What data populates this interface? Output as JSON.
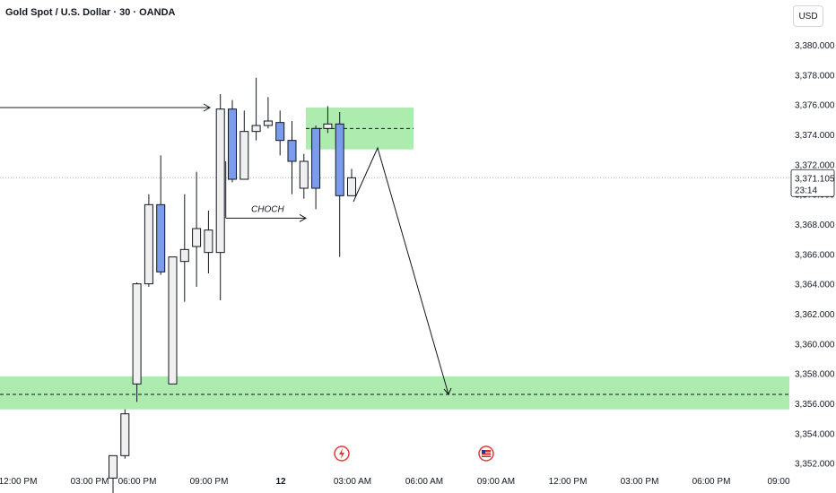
{
  "header": {
    "title": "Gold Spot / U.S. Dollar · 30 · OANDA",
    "currency": "USD"
  },
  "chart_data": {
    "type": "candlestick",
    "y_ticks": [
      "3,380.000",
      "3,378.000",
      "3,376.000",
      "3,374.000",
      "3,372.000",
      "3,370.000",
      "3,368.000",
      "3,366.000",
      "3,364.000",
      "3,362.000",
      "3,360.000",
      "3,358.000",
      "3,356.000",
      "3,354.000",
      "3,352.000"
    ],
    "ylim": [
      3351.2,
      3382.4
    ],
    "x_ticks": [
      "12:00 PM",
      "03:00 PM",
      "06:00 PM",
      "09:00 PM",
      "12",
      "03:00 AM",
      "06:00 AM",
      "09:00 AM",
      "12:00 PM",
      "03:00 PM",
      "06:00 PM",
      "09:00"
    ],
    "current_price": {
      "value": 3371.105,
      "label": "3,371.105",
      "countdown": "23:14"
    },
    "candles": [
      {
        "o": 3351.0,
        "h": 3352.5,
        "l": 3350.0,
        "c": 3352.5
      },
      {
        "o": 3352.5,
        "h": 3355.6,
        "l": 3352.3,
        "c": 3355.3
      },
      {
        "o": 3357.3,
        "h": 3364.1,
        "l": 3356.1,
        "c": 3364.0
      },
      {
        "o": 3364.0,
        "h": 3370.0,
        "l": 3363.8,
        "c": 3369.3
      },
      {
        "o": 3369.3,
        "h": 3372.6,
        "l": 3364.6,
        "c": 3364.8
      },
      {
        "o": 3357.3,
        "h": 3365.8,
        "l": 3357.3,
        "c": 3365.8
      },
      {
        "o": 3365.5,
        "h": 3370.0,
        "l": 3362.8,
        "c": 3366.3
      },
      {
        "o": 3366.5,
        "h": 3371.5,
        "l": 3363.8,
        "c": 3367.7
      },
      {
        "o": 3366.1,
        "h": 3368.9,
        "l": 3364.7,
        "c": 3367.6
      },
      {
        "o": 3366.1,
        "h": 3376.7,
        "l": 3362.9,
        "c": 3375.7
      },
      {
        "o": 3375.7,
        "h": 3376.3,
        "l": 3370.8,
        "c": 3371.0
      },
      {
        "o": 3371.0,
        "h": 3375.6,
        "l": 3371.0,
        "c": 3374.2
      },
      {
        "o": 3374.2,
        "h": 3377.8,
        "l": 3373.6,
        "c": 3374.6
      },
      {
        "o": 3374.6,
        "h": 3376.5,
        "l": 3374.4,
        "c": 3374.9
      },
      {
        "o": 3374.8,
        "h": 3375.6,
        "l": 3372.6,
        "c": 3373.6
      },
      {
        "o": 3373.6,
        "h": 3374.9,
        "l": 3370.0,
        "c": 3372.2
      },
      {
        "o": 3370.4,
        "h": 3372.7,
        "l": 3369.7,
        "c": 3372.2
      },
      {
        "o": 3374.4,
        "h": 3374.6,
        "l": 3369.0,
        "c": 3370.4
      },
      {
        "o": 3374.4,
        "h": 3375.9,
        "l": 3374.1,
        "c": 3374.7
      },
      {
        "o": 3374.7,
        "h": 3375.5,
        "l": 3365.8,
        "c": 3369.9
      },
      {
        "o": 3369.9,
        "h": 3371.7,
        "l": 3369.9,
        "c": 3371.1
      }
    ],
    "annotations": {
      "choch_label": "CHOCH",
      "zone_upper": {
        "from": 3373.0,
        "to": 3375.8,
        "line": 3374.4
      },
      "zone_lower": {
        "from": 3355.6,
        "to": 3357.8,
        "line": 3356.6
      },
      "liquidity_level": 3375.8,
      "choch_level": 3368.4,
      "projection": [
        3369.5,
        3373.1,
        3356.6
      ]
    },
    "events": [
      "lightning-event-icon",
      "us-flag-event-icon"
    ],
    "colors": {
      "bull": "#f0f0f0",
      "bear": "#7b9cec",
      "candle_outline": "#131722",
      "zone": "#8be38b",
      "current_price": "#131722"
    }
  }
}
